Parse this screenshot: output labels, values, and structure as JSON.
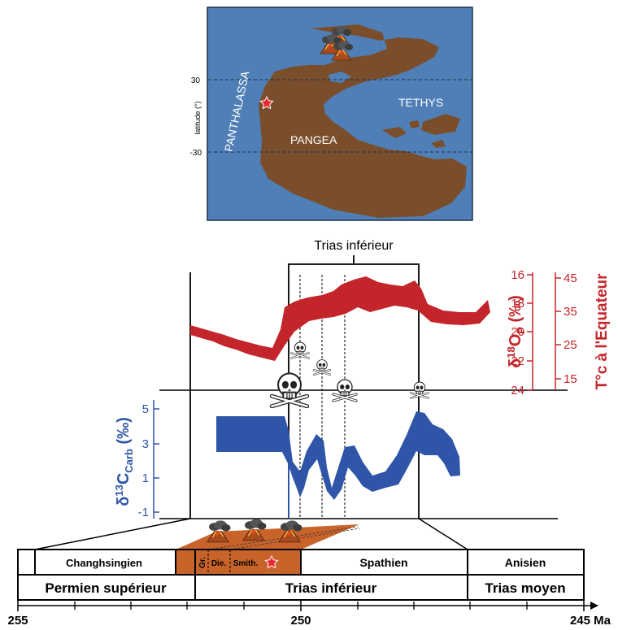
{
  "map": {
    "ocean_west": "PANTHALASSA",
    "ocean_east": "TETHYS",
    "continent": "PANGEA",
    "lat_axis_label": "latitude (°)",
    "lat_ticks": [
      "30",
      "-30"
    ]
  },
  "bracket_label": "Trias inférieur",
  "oxygen_axis": {
    "label_prefix": "δ",
    "label_sup": "18",
    "label_main": "O",
    "label_sub": "P",
    "label_suffix": " (‰)",
    "ticks": [
      "16",
      "18",
      "20",
      "22",
      "24"
    ]
  },
  "temperature_axis": {
    "label": "T°c à l'Equateur",
    "ticks": [
      "45",
      "35",
      "25",
      "15"
    ]
  },
  "carbon_axis": {
    "label_prefix": "δ",
    "label_sup": "13",
    "label_main": "C",
    "label_sub": "Carb",
    "label_suffix": " (‰)",
    "ticks": [
      "5",
      "3",
      "1",
      "-1"
    ]
  },
  "stages": {
    "changhsingien": "Changhsingien",
    "gr": "Gr.",
    "die": "Die.",
    "smith": "Smith.",
    "spathien": "Spathien",
    "anisien": "Anisien"
  },
  "series": {
    "permien_sup": "Permien supérieur",
    "trias_inf": "Trias inférieur",
    "trias_moyen": "Trias moyen"
  },
  "time_axis": {
    "ticks": [
      "255",
      "250",
      "245 Ma"
    ]
  },
  "colors": {
    "ocean": "#4f7fb6",
    "land": "#7a4e2b",
    "red_series": "#c4252a",
    "blue_series": "#2f55a8",
    "volcanic_band": "#c8632a"
  },
  "icons": [
    "volcano-icon",
    "skull-crossbones-icon",
    "red-star-icon"
  ]
}
